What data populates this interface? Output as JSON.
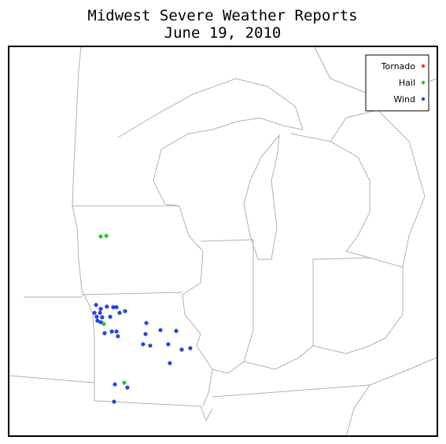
{
  "title": "Midwest Severe Weather Reports",
  "subtitle": "June 19, 2010",
  "legend": [
    {
      "name": "Tornado",
      "color": "#ff3333",
      "lon": [],
      "lat": []
    },
    {
      "name": "Hail",
      "color": "#22cc22",
      "lon": [
        -95.42,
        -95.15,
        -95.27,
        -94.27
      ],
      "lat": [
        42.42,
        42.44,
        39.33,
        37.25
      ]
    },
    {
      "name": "Wind",
      "color": "#2244ee",
      "lon": [
        -95.65,
        -95.42,
        -95.12,
        -94.81,
        -94.65,
        -94.5,
        -94.23,
        -95.73,
        -95.46,
        -95.62,
        -95.35,
        -95.58,
        -95.42,
        -94.96,
        -95.23,
        -94.88,
        -94.65,
        -94.58,
        -93.19,
        -92.5,
        -93.23,
        -91.73,
        -93.35,
        -93.0,
        -92.12,
        -91.46,
        -91.04,
        -92.04,
        -94.12,
        -94.73,
        -94.77
      ],
      "lat": [
        40.0,
        39.86,
        39.94,
        39.92,
        39.92,
        39.72,
        39.78,
        39.72,
        39.72,
        39.58,
        39.56,
        39.44,
        39.39,
        39.58,
        39.0,
        39.06,
        39.06,
        38.89,
        39.36,
        39.11,
        38.97,
        39.08,
        38.61,
        38.56,
        38.61,
        38.42,
        38.47,
        37.94,
        37.08,
        37.19,
        36.58
      ]
    }
  ]
}
